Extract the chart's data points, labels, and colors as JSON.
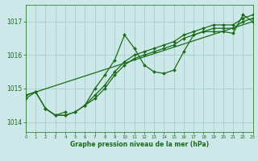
{
  "background_color": "#cce8e8",
  "grid_color": "#aacccc",
  "line_color": "#1a6b1a",
  "marker_color": "#1a6b1a",
  "xlabel": "Graphe pression niveau de la mer (hPa)",
  "xlabel_color": "#1a6b1a",
  "tick_color": "#1a6b1a",
  "xlim": [
    0,
    23
  ],
  "ylim": [
    1013.7,
    1017.5
  ],
  "yticks": [
    1014,
    1015,
    1016,
    1017
  ],
  "xticks": [
    0,
    1,
    2,
    3,
    4,
    5,
    6,
    7,
    8,
    9,
    10,
    11,
    12,
    13,
    14,
    15,
    16,
    17,
    18,
    19,
    20,
    21,
    22,
    23
  ],
  "series_smooth1": {
    "x": [
      0,
      1,
      2,
      3,
      4,
      5,
      6,
      7,
      8,
      9,
      10,
      11,
      12,
      13,
      14,
      15,
      16,
      17,
      18,
      19,
      20,
      21,
      22,
      23
    ],
    "y": [
      1014.8,
      1014.9,
      1014.4,
      1014.2,
      1014.2,
      1014.3,
      1014.5,
      1014.7,
      1015.0,
      1015.4,
      1015.7,
      1015.9,
      1016.0,
      1016.1,
      1016.2,
      1016.3,
      1016.5,
      1016.6,
      1016.7,
      1016.8,
      1016.8,
      1016.8,
      1017.0,
      1017.1
    ]
  },
  "series_smooth2": {
    "x": [
      0,
      1,
      2,
      3,
      4,
      5,
      6,
      7,
      8,
      9,
      10,
      11,
      12,
      13,
      14,
      15,
      16,
      17,
      18,
      19,
      20,
      21,
      22,
      23
    ],
    "y": [
      1014.7,
      1014.9,
      1014.4,
      1014.2,
      1014.2,
      1014.3,
      1014.5,
      1014.8,
      1015.1,
      1015.5,
      1015.8,
      1016.0,
      1016.1,
      1016.2,
      1016.3,
      1016.4,
      1016.6,
      1016.7,
      1016.8,
      1016.9,
      1016.9,
      1016.9,
      1017.1,
      1017.2
    ]
  },
  "series_spiky": {
    "x": [
      0,
      1,
      2,
      3,
      4,
      5,
      6,
      7,
      8,
      9,
      10,
      11,
      12,
      13,
      14,
      15,
      16,
      17,
      18,
      19,
      20,
      21,
      22,
      23
    ],
    "y": [
      1014.8,
      null,
      1014.4,
      1014.2,
      1014.3,
      null,
      1014.5,
      1015.0,
      1015.4,
      1015.85,
      1016.6,
      1016.2,
      1015.7,
      1015.5,
      1015.45,
      1015.55,
      1016.1,
      1016.6,
      1016.7,
      1016.7,
      1016.7,
      1016.65,
      1017.2,
      1017.0
    ]
  },
  "series_trend": {
    "x": [
      0,
      23
    ],
    "y": [
      1014.8,
      1017.0
    ]
  }
}
